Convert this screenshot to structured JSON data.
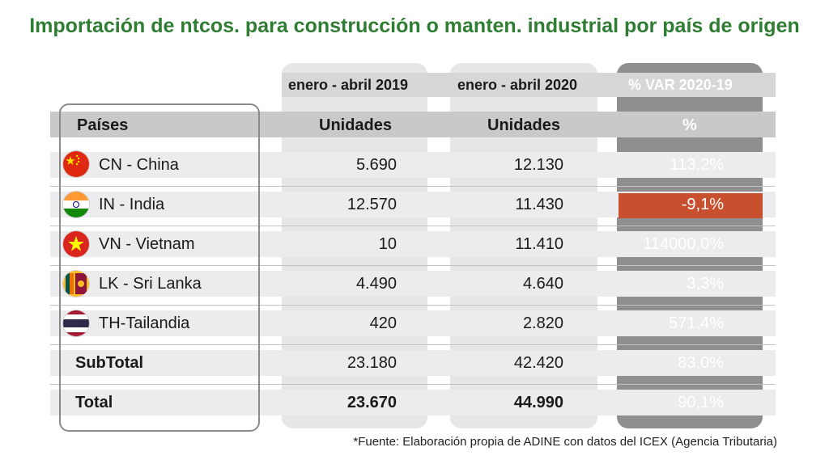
{
  "title": "Importación de ntcos. para construcción o manten. industrial por país de origen",
  "source": "*Fuente: Elaboración propia de ADINE con datos del ICEX (Agencia Tributaria)",
  "colors": {
    "title_green": "#2e7d32",
    "negative_highlight": "#c8502e",
    "var_column": "#8f8f92"
  },
  "chart_data": {
    "type": "table",
    "column_groups": [
      "enero - abril  2019",
      "enero - abril  2020",
      "% VAR 2020-19"
    ],
    "headers": [
      "Países",
      "Unidades",
      "Unidades",
      "%"
    ],
    "rows": [
      {
        "country": "CN - China",
        "flag": "china-flag-icon",
        "v2019": "5.690",
        "v2020": "12.130",
        "var": "113,2%"
      },
      {
        "country": "IN - India",
        "flag": "india-flag-icon",
        "v2019": "12.570",
        "v2020": "11.430",
        "var": "-9,1%"
      },
      {
        "country": "VN - Vietnam",
        "flag": "vietnam-flag-icon",
        "v2019": "10",
        "v2020": "11.410",
        "var": "114000,0%"
      },
      {
        "country": "LK - Sri Lanka",
        "flag": "sri-lanka-flag-icon",
        "v2019": "4.490",
        "v2020": "4.640",
        "var": "3,3%"
      },
      {
        "country": "TH-Tailandia",
        "flag": "thailand-flag-icon",
        "v2019": "420",
        "v2020": "2.820",
        "var": "571,4%"
      }
    ],
    "subtotal": {
      "label": "SubTotal",
      "v2019": "23.180",
      "v2020": "42.420",
      "var": "83,0%"
    },
    "total": {
      "label": "Total",
      "v2019": "23.670",
      "v2020": "44.990",
      "var": "90,1%"
    }
  }
}
